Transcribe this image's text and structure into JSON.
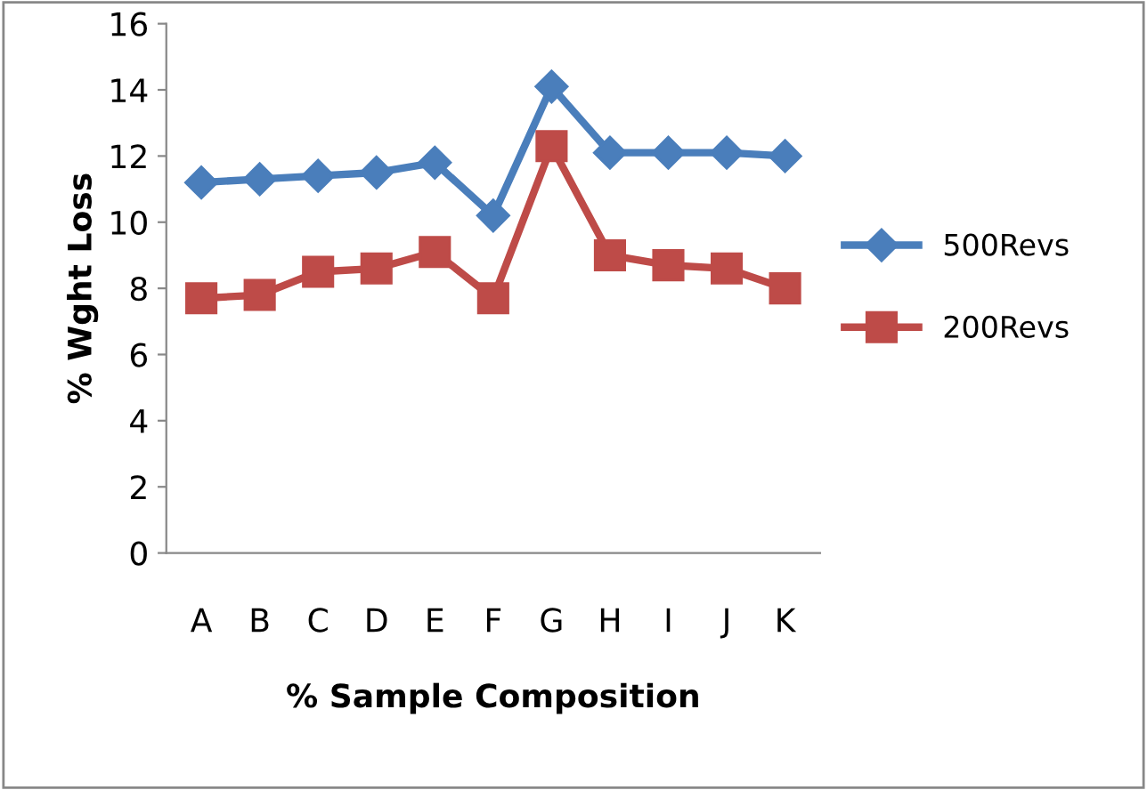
{
  "chart_data": {
    "type": "line",
    "xlabel": "% Sample Composition",
    "ylabel": "% Wght Loss",
    "categories": [
      "A",
      "B",
      "C",
      "D",
      "E",
      "F",
      "G",
      "H",
      "I",
      "J",
      "K"
    ],
    "series": [
      {
        "name": "500Revs",
        "color": "#4a7ebb",
        "marker": "diamond",
        "values": [
          11.2,
          11.3,
          11.4,
          11.5,
          11.8,
          10.2,
          14.1,
          12.1,
          12.1,
          12.1,
          12.0
        ]
      },
      {
        "name": "200Revs",
        "color": "#be4b48",
        "marker": "square",
        "values": [
          7.7,
          7.8,
          8.5,
          8.6,
          9.1,
          7.7,
          12.3,
          9.0,
          8.7,
          8.6,
          8.0
        ]
      }
    ],
    "ylim": [
      0,
      16
    ],
    "yticks": [
      0,
      2,
      4,
      6,
      8,
      10,
      12,
      14,
      16
    ],
    "grid": false,
    "legend": "right",
    "line_style": "solid"
  }
}
